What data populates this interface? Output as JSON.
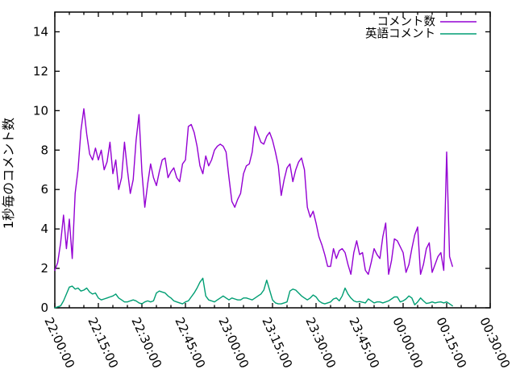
{
  "figure": {
    "background": "#ffffff",
    "axis_color": "#000000"
  },
  "chart_data": {
    "type": "line",
    "title": "",
    "xlabel": "",
    "ylabel": "1秒毎のコメント数",
    "ylim": [
      0,
      15
    ],
    "yticks": [
      0,
      2,
      4,
      6,
      8,
      10,
      12,
      14
    ],
    "x_total_minutes": 150,
    "xtick_minutes": [
      0,
      15,
      30,
      45,
      60,
      75,
      90,
      105,
      120,
      135,
      150
    ],
    "xtick_labels": [
      "22:00:00",
      "22:15:00",
      "22:30:00",
      "22:45:00",
      "23:00:00",
      "23:15:00",
      "23:30:00",
      "23:45:00",
      "00:00:00",
      "00:15:00",
      "00:30:00"
    ],
    "minor_xtick_interval_minutes": 5,
    "grid": false,
    "legend_position": "top-right-inside",
    "series": [
      {
        "name": "コメント数",
        "color": "#9400d3",
        "start_minute": 0,
        "step_minutes": 1,
        "values": [
          1.9,
          2.3,
          3.3,
          4.7,
          3.0,
          4.5,
          2.5,
          5.8,
          7.0,
          9.0,
          10.1,
          8.8,
          7.8,
          7.5,
          8.1,
          7.5,
          8.0,
          7.0,
          7.4,
          8.4,
          6.8,
          7.5,
          6.0,
          6.6,
          8.4,
          7.0,
          5.8,
          6.5,
          8.5,
          9.8,
          6.9,
          5.1,
          6.3,
          7.3,
          6.6,
          6.2,
          6.9,
          7.5,
          7.6,
          6.6,
          6.9,
          7.1,
          6.6,
          6.4,
          7.3,
          7.5,
          9.2,
          9.3,
          8.9,
          8.2,
          7.2,
          6.8,
          7.7,
          7.2,
          7.5,
          8.0,
          8.2,
          8.3,
          8.2,
          7.9,
          6.6,
          5.4,
          5.1,
          5.5,
          5.8,
          6.8,
          7.2,
          7.3,
          7.9,
          9.2,
          8.8,
          8.4,
          8.3,
          8.7,
          8.9,
          8.5,
          7.9,
          7.2,
          5.7,
          6.5,
          7.1,
          7.3,
          6.4,
          7.0,
          7.4,
          7.6,
          7.0,
          5.1,
          4.6,
          4.9,
          4.3,
          3.6,
          3.2,
          2.7,
          2.1,
          2.1,
          3.0,
          2.5,
          2.9,
          3.0,
          2.8,
          2.2,
          1.7,
          2.8,
          3.4,
          2.7,
          2.8,
          1.9,
          1.7,
          2.3,
          3.0,
          2.7,
          2.5,
          3.6,
          4.3,
          1.7,
          2.4,
          3.5,
          3.4,
          3.1,
          2.8,
          1.8,
          2.2,
          3.0,
          3.7,
          4.1,
          1.7,
          2.2,
          3.0,
          3.3,
          1.8,
          2.2,
          2.6,
          2.8,
          1.9,
          7.9,
          2.6,
          2.1
        ]
      },
      {
        "name": "英語コメント",
        "color": "#009e73",
        "start_minute": 0,
        "step_minutes": 1,
        "values": [
          0.0,
          0.05,
          0.1,
          0.35,
          0.7,
          1.05,
          1.1,
          0.95,
          1.0,
          0.85,
          0.9,
          1.0,
          0.8,
          0.7,
          0.75,
          0.5,
          0.4,
          0.45,
          0.5,
          0.55,
          0.6,
          0.7,
          0.5,
          0.4,
          0.3,
          0.3,
          0.35,
          0.4,
          0.35,
          0.25,
          0.2,
          0.3,
          0.35,
          0.3,
          0.35,
          0.75,
          0.85,
          0.8,
          0.75,
          0.6,
          0.5,
          0.35,
          0.3,
          0.25,
          0.2,
          0.3,
          0.35,
          0.55,
          0.75,
          1.0,
          1.3,
          1.5,
          0.6,
          0.4,
          0.35,
          0.3,
          0.4,
          0.5,
          0.6,
          0.5,
          0.4,
          0.5,
          0.45,
          0.4,
          0.4,
          0.5,
          0.5,
          0.45,
          0.4,
          0.5,
          0.6,
          0.7,
          0.9,
          1.4,
          0.9,
          0.4,
          0.25,
          0.2,
          0.2,
          0.25,
          0.3,
          0.85,
          0.95,
          0.9,
          0.75,
          0.6,
          0.5,
          0.4,
          0.5,
          0.65,
          0.55,
          0.35,
          0.25,
          0.2,
          0.25,
          0.3,
          0.45,
          0.5,
          0.35,
          0.6,
          1.0,
          0.7,
          0.5,
          0.35,
          0.3,
          0.32,
          0.28,
          0.25,
          0.45,
          0.35,
          0.25,
          0.3,
          0.3,
          0.25,
          0.3,
          0.35,
          0.45,
          0.55,
          0.55,
          0.3,
          0.35,
          0.45,
          0.6,
          0.5,
          0.15,
          0.3,
          0.5,
          0.35,
          0.22,
          0.25,
          0.3,
          0.25,
          0.28,
          0.3,
          0.25,
          0.3,
          0.2,
          0.1
        ]
      }
    ]
  }
}
